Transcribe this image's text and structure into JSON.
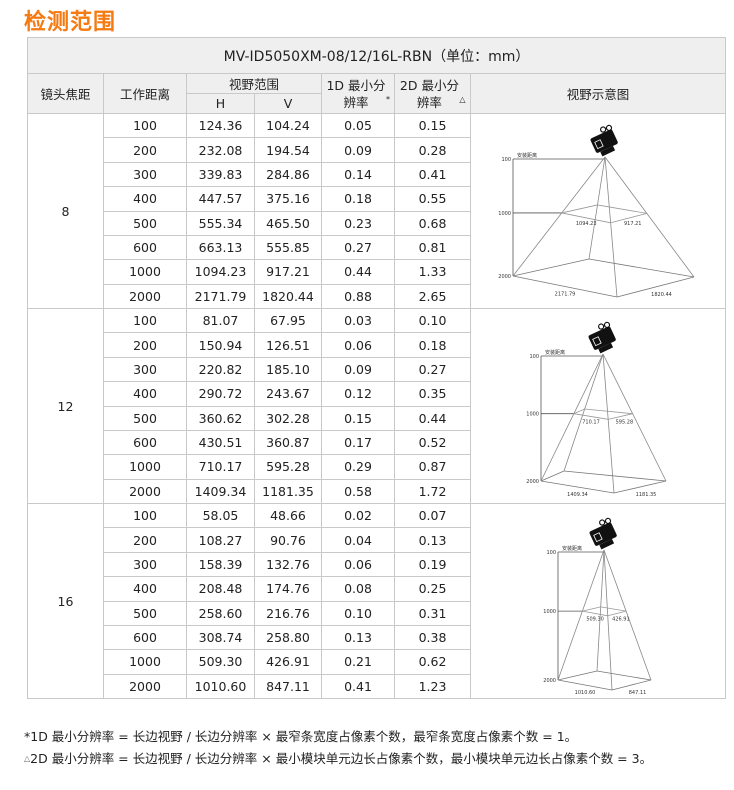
{
  "title": "检测范围",
  "table": {
    "caption": "MV-ID5050XM-08/12/16L-RBN（单位：mm）",
    "headers": {
      "focal": "镜头焦距",
      "distance": "工作距离",
      "fov": "视野范围",
      "h": "H",
      "v": "V",
      "res1d": "1D 最小分辨率",
      "res1d_mark": "*",
      "res2d": "2D 最小分辨率",
      "res2d_mark": "△",
      "diagram": "视野示意图"
    },
    "groups": [
      {
        "focal": "8",
        "rows": [
          [
            "100",
            "124.36",
            "104.24",
            "0.05",
            "0.15"
          ],
          [
            "200",
            "232.08",
            "194.54",
            "0.09",
            "0.28"
          ],
          [
            "300",
            "339.83",
            "284.86",
            "0.14",
            "0.41"
          ],
          [
            "400",
            "447.57",
            "375.16",
            "0.18",
            "0.55"
          ],
          [
            "500",
            "555.34",
            "465.50",
            "0.23",
            "0.68"
          ],
          [
            "600",
            "663.13",
            "555.85",
            "0.27",
            "0.81"
          ],
          [
            "1000",
            "1094.23",
            "917.21",
            "0.44",
            "1.33"
          ],
          [
            "2000",
            "2171.79",
            "1820.44",
            "0.88",
            "2.65"
          ]
        ],
        "diagram": {
          "axis_label": "安装距离",
          "ticks": [
            "100",
            "1000",
            "2000"
          ],
          "mid_h": "1094.23",
          "mid_v": "917.21",
          "bot_h": "2171.79",
          "bot_v": "1820.44"
        }
      },
      {
        "focal": "12",
        "rows": [
          [
            "100",
            "81.07",
            "67.95",
            "0.03",
            "0.10"
          ],
          [
            "200",
            "150.94",
            "126.51",
            "0.06",
            "0.18"
          ],
          [
            "300",
            "220.82",
            "185.10",
            "0.09",
            "0.27"
          ],
          [
            "400",
            "290.72",
            "243.67",
            "0.12",
            "0.35"
          ],
          [
            "500",
            "360.62",
            "302.28",
            "0.15",
            "0.44"
          ],
          [
            "600",
            "430.51",
            "360.87",
            "0.17",
            "0.52"
          ],
          [
            "1000",
            "710.17",
            "595.28",
            "0.29",
            "0.87"
          ],
          [
            "2000",
            "1409.34",
            "1181.35",
            "0.58",
            "1.72"
          ]
        ],
        "diagram": {
          "axis_label": "安装距离",
          "ticks": [
            "100",
            "1000",
            "2000"
          ],
          "mid_h": "710.17",
          "mid_v": "595.28",
          "bot_h": "1409.34",
          "bot_v": "1181.35"
        }
      },
      {
        "focal": "16",
        "rows": [
          [
            "100",
            "58.05",
            "48.66",
            "0.02",
            "0.07"
          ],
          [
            "200",
            "108.27",
            "90.76",
            "0.04",
            "0.13"
          ],
          [
            "300",
            "158.39",
            "132.76",
            "0.06",
            "0.19"
          ],
          [
            "400",
            "208.48",
            "174.76",
            "0.08",
            "0.25"
          ],
          [
            "500",
            "258.60",
            "216.76",
            "0.10",
            "0.31"
          ],
          [
            "600",
            "308.74",
            "258.80",
            "0.13",
            "0.38"
          ],
          [
            "1000",
            "509.30",
            "426.91",
            "0.21",
            "0.62"
          ],
          [
            "2000",
            "1010.60",
            "847.11",
            "0.41",
            "1.23"
          ]
        ],
        "diagram": {
          "axis_label": "安装距离",
          "ticks": [
            "100",
            "1000",
            "2000"
          ],
          "mid_h": "509.30",
          "mid_v": "426.91",
          "bot_h": "1010.60",
          "bot_v": "847.11"
        }
      }
    ]
  },
  "notes": {
    "note1_mark": "*",
    "note1": "1D 最小分辨率 = 长边视野 / 长边分辨率 × 最窄条宽度占像素个数，最窄条宽度占像素个数 = 1。",
    "note2_mark": "△",
    "note2": "2D 最小分辨率 = 长边视野 / 长边分辨率 × 最小模块单元边长占像素个数，最小模块单元边长占像素个数 = 3。"
  },
  "colors": {
    "title": "#f57a12",
    "header_bg": "#efefef",
    "border": "#c9c9c9"
  }
}
